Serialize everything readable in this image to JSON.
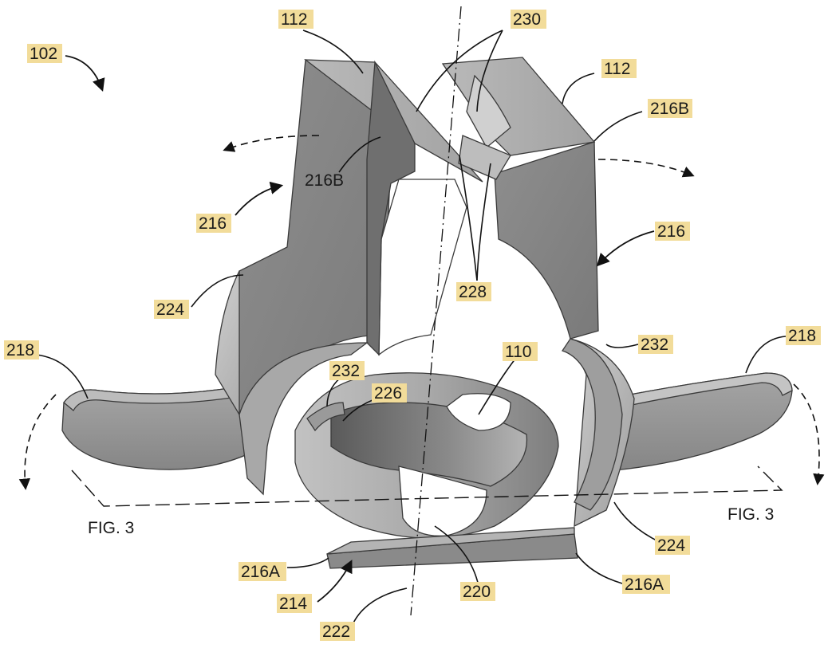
{
  "figure": {
    "reference_numerals": {
      "assembly": "102",
      "top_left_end": "112",
      "top_right_end": "112",
      "slot_edges": "230",
      "upper_end_right": "216B",
      "upper_end_left": "216B",
      "arm_left": "216",
      "arm_right": "216",
      "slot_faces": "228",
      "shoulder_left": "224",
      "shoulder_right": "224",
      "wing_left": "218",
      "wing_right": "218",
      "ring_lip_left": "232",
      "ring_lip_right": "232",
      "ring_edge": "226",
      "ring": "110",
      "lower_end_left": "216A",
      "lower_end_right": "216A",
      "base": "214",
      "bore": "220",
      "axis": "222"
    },
    "section_labels": {
      "left": "FIG. 3",
      "right": "FIG. 3"
    }
  }
}
